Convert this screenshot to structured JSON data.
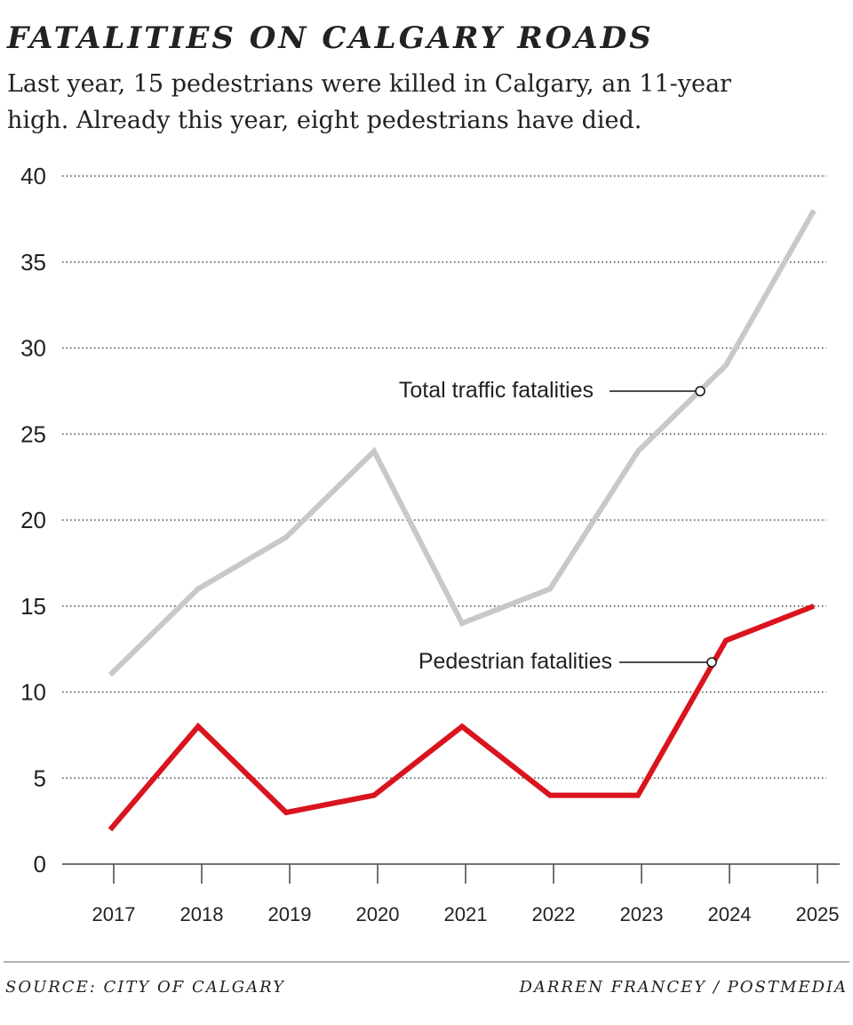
{
  "chart_data": {
    "type": "line",
    "title": "FATALITIES ON CALGARY ROADS",
    "subtitle": [
      "Last year, 15 pedestrians were killed in Calgary, an 11-year",
      "high. Already this year, eight pedestrians have died."
    ],
    "categories": [
      "2017",
      "2018",
      "2019",
      "2020",
      "2021",
      "2022",
      "2023",
      "2024",
      "2025"
    ],
    "series": [
      {
        "name": "Total traffic fatalities",
        "color": "#c8c8c8",
        "values": [
          11,
          16,
          19,
          24,
          14,
          16,
          24,
          29,
          38
        ]
      },
      {
        "name": "Pedestrian fatalities",
        "color": "#d9141e",
        "values": [
          2,
          8,
          3,
          4,
          8,
          4,
          4,
          13,
          15
        ]
      }
    ],
    "ylim": [
      0,
      40
    ],
    "yticks": [
      0,
      5,
      10,
      15,
      20,
      25,
      30,
      35,
      40
    ],
    "grid": true,
    "source": "SOURCE: CITY OF CALGARY",
    "credit": "DARREN FRANCEY / POSTMEDIA"
  }
}
